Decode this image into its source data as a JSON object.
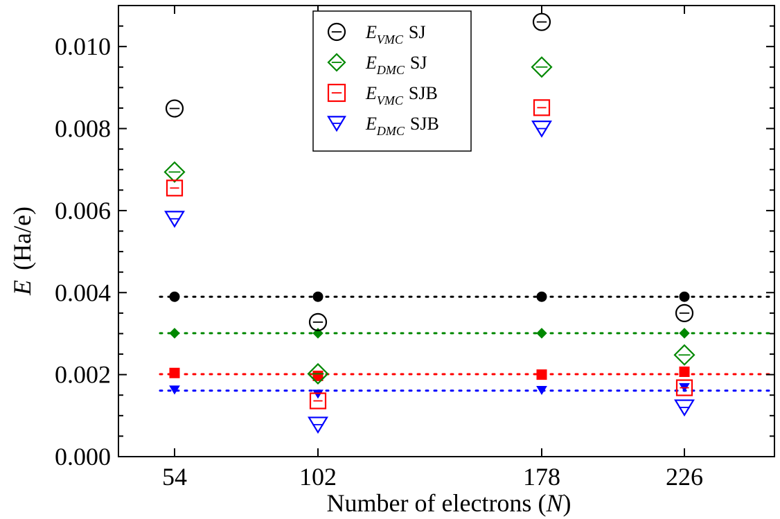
{
  "chart_data": {
    "type": "scatter",
    "title": "",
    "xlabel": {
      "text": "Number of electrons (",
      "var": "N",
      "close": ")"
    },
    "ylabel": {
      "var": "E",
      "unit": "(Ha/e)"
    },
    "x_categories": [
      "54",
      "102",
      "178",
      "226"
    ],
    "y_ticks": [
      "0.000",
      "0.002",
      "0.004",
      "0.006",
      "0.008",
      "0.010"
    ],
    "ylim": [
      0.0,
      0.011
    ],
    "legend_position": "top-center",
    "series": [
      {
        "name": "E_VMC SJ",
        "legend_main": "E",
        "legend_sub": "VMC",
        "legend_suffix": "SJ",
        "marker": "circle",
        "color": "#000000",
        "values": [
          0.00849,
          0.00328,
          0.0106,
          0.0035
        ]
      },
      {
        "name": "E_DMC SJ",
        "legend_main": "E",
        "legend_sub": "DMC",
        "legend_suffix": "SJ",
        "marker": "diamond",
        "color": "#008800",
        "values": [
          0.00694,
          0.00202,
          0.0095,
          0.00248
        ]
      },
      {
        "name": "E_VMC SJB",
        "legend_main": "E",
        "legend_sub": "VMC",
        "legend_suffix": "SJB",
        "marker": "square",
        "color": "#ff0000",
        "values": [
          0.00655,
          0.00136,
          0.00851,
          0.00168
        ]
      },
      {
        "name": "E_DMC SJB",
        "legend_main": "E",
        "legend_sub": "DMC",
        "legend_suffix": "SJB",
        "marker": "triangle-down",
        "color": "#0000ff",
        "values": [
          0.0058,
          0.00078,
          0.008,
          0.0012
        ]
      }
    ],
    "reference_points": [
      {
        "color": "#000000",
        "marker": "circle",
        "values": [
          0.0039,
          0.0039,
          0.0039,
          0.0039
        ]
      },
      {
        "color": "#008800",
        "marker": "diamond",
        "values": [
          0.00301,
          0.00301,
          0.00301,
          0.00301
        ]
      },
      {
        "color": "#ff0000",
        "marker": "square",
        "values": [
          0.00204,
          0.00197,
          0.002,
          0.00207
        ]
      },
      {
        "color": "#0000ff",
        "marker": "triangle-down",
        "values": [
          0.00163,
          0.00153,
          0.00162,
          0.00169
        ]
      }
    ],
    "reference_lines": [
      {
        "color": "#000000",
        "value": 0.0039
      },
      {
        "color": "#008800",
        "value": 0.00301
      },
      {
        "color": "#ff0000",
        "value": 0.00201
      },
      {
        "color": "#0000ff",
        "value": 0.00161
      }
    ]
  }
}
